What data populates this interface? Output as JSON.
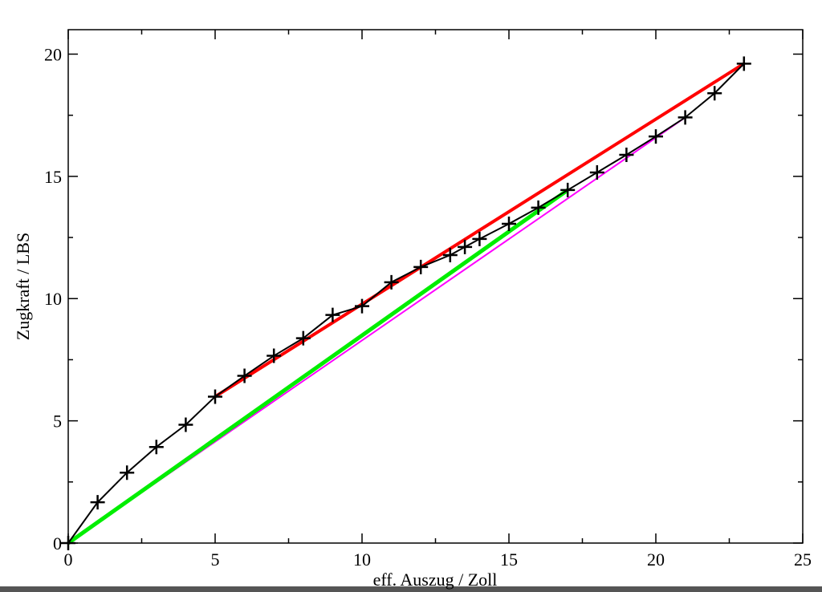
{
  "chart_data": {
    "type": "line",
    "xlabel": "eff. Auszug / Zoll",
    "ylabel": "Zugkraft / LBS",
    "xlim": [
      0,
      25
    ],
    "ylim": [
      0,
      21
    ],
    "xticks": [
      0,
      5,
      10,
      15,
      20,
      25
    ],
    "yticks": [
      0,
      5,
      10,
      15,
      20
    ],
    "xminorticks": [
      2.5,
      7.5,
      12.5,
      17.5,
      22.5
    ],
    "yminorticks": [
      2.5,
      7.5,
      12.5,
      17.5
    ],
    "series": [
      {
        "color": "#ff00ff",
        "width": 2,
        "marker": "none",
        "x": [
          0,
          21
        ],
        "values": [
          0,
          17.41
        ]
      },
      {
        "color": "#00ee00",
        "width": 5,
        "marker": "none",
        "x": [
          0,
          17
        ],
        "values": [
          0,
          14.44
        ]
      },
      {
        "color": "#ff0000",
        "width": 4,
        "marker": "none",
        "x": [
          5,
          23
        ],
        "values": [
          5.99,
          19.61
        ]
      },
      {
        "color": "#000000",
        "width": 2,
        "marker": "plus",
        "x": [
          0,
          1,
          2,
          3,
          4,
          5,
          6,
          7,
          8,
          9,
          10,
          11,
          12,
          13,
          13.5,
          14,
          15,
          16,
          17,
          18,
          19,
          20,
          21,
          22,
          23
        ],
        "values": [
          0,
          1.67,
          2.88,
          3.93,
          4.84,
          5.99,
          6.84,
          7.66,
          8.38,
          9.33,
          9.69,
          10.67,
          11.29,
          11.78,
          12.11,
          12.44,
          13.06,
          13.72,
          14.44,
          15.16,
          15.88,
          16.63,
          17.41,
          18.4,
          19.61
        ]
      }
    ]
  }
}
